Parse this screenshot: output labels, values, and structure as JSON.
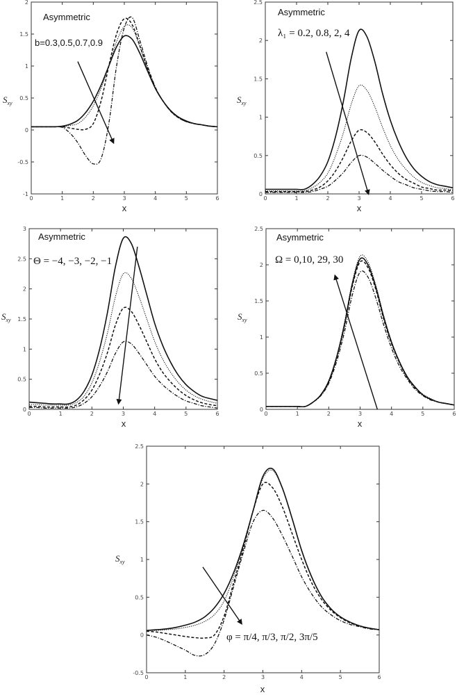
{
  "chart_data": [
    {
      "type": "line",
      "annotation": "Asymmetric",
      "param_label": "b=0.3,0.5,0.7,0.9",
      "xlabel": "x",
      "ylabel": {
        "base": "S",
        "sub": "xy"
      },
      "xlim": [
        0,
        6
      ],
      "ylim": [
        -1,
        2
      ],
      "xticks": [
        0,
        1,
        2,
        3,
        4,
        5,
        6
      ],
      "yticks": [
        -1,
        -0.5,
        0,
        0.5,
        1,
        1.5,
        2
      ],
      "arrow": {
        "from": [
          1.5,
          1.07
        ],
        "to": [
          2.65,
          -0.2
        ]
      },
      "x": [
        0,
        0.25,
        0.5,
        0.75,
        1,
        1.25,
        1.5,
        1.75,
        2,
        2.25,
        2.5,
        2.75,
        3,
        3.25,
        3.5,
        3.75,
        4,
        4.25,
        4.5,
        4.75,
        5,
        5.25,
        5.5,
        5.75,
        6
      ],
      "series": [
        {
          "style": "solid",
          "values": [
            0.05,
            0.05,
            0.05,
            0.05,
            0.06,
            0.09,
            0.15,
            0.27,
            0.45,
            0.7,
            1.0,
            1.3,
            1.47,
            1.42,
            1.2,
            0.92,
            0.65,
            0.45,
            0.3,
            0.2,
            0.14,
            0.1,
            0.08,
            0.06,
            0.05
          ]
        },
        {
          "style": "dotted",
          "values": [
            0.05,
            0.05,
            0.05,
            0.05,
            0.05,
            0.07,
            0.1,
            0.2,
            0.38,
            0.65,
            1.0,
            1.38,
            1.62,
            1.6,
            1.3,
            0.95,
            0.66,
            0.45,
            0.3,
            0.2,
            0.13,
            0.1,
            0.08,
            0.06,
            0.05
          ]
        },
        {
          "style": "dashed",
          "values": [
            0.05,
            0.05,
            0.05,
            0.05,
            0.05,
            0.03,
            0.01,
            0.01,
            0.1,
            0.45,
            1.0,
            1.5,
            1.74,
            1.65,
            1.32,
            0.96,
            0.66,
            0.45,
            0.29,
            0.19,
            0.13,
            0.1,
            0.08,
            0.06,
            0.05
          ]
        },
        {
          "style": "dashdot",
          "values": [
            0.05,
            0.05,
            0.05,
            0.05,
            0.04,
            -0.05,
            -0.2,
            -0.4,
            -0.53,
            -0.45,
            0.1,
            1.0,
            1.6,
            1.76,
            1.4,
            1.0,
            0.67,
            0.45,
            0.29,
            0.19,
            0.13,
            0.1,
            0.08,
            0.06,
            0.05
          ]
        }
      ]
    },
    {
      "type": "line",
      "annotation": "Asymmetric",
      "param_label": "λ₁ = 0.2, 0.8, 2, 4",
      "xlabel": "x",
      "ylabel": {
        "base": "S",
        "sub": "xy"
      },
      "xlim": [
        0,
        6
      ],
      "ylim": [
        0,
        2.5
      ],
      "xticks": [
        0,
        1,
        2,
        3,
        4,
        5,
        6
      ],
      "yticks": [
        0,
        0.5,
        1,
        1.5,
        2,
        2.5
      ],
      "arrow": {
        "from": [
          1.95,
          1.85
        ],
        "to": [
          3.3,
          0.0
        ]
      },
      "x": [
        0,
        0.25,
        0.5,
        0.75,
        1,
        1.25,
        1.5,
        1.75,
        2,
        2.25,
        2.5,
        2.75,
        3,
        3.25,
        3.5,
        3.75,
        4,
        4.25,
        4.5,
        4.75,
        5,
        5.25,
        5.5,
        5.75,
        6
      ],
      "series": [
        {
          "style": "solid",
          "values": [
            0.06,
            0.06,
            0.06,
            0.06,
            0.06,
            0.06,
            0.12,
            0.23,
            0.42,
            0.75,
            1.21,
            1.77,
            2.13,
            2.05,
            1.73,
            1.31,
            0.96,
            0.69,
            0.48,
            0.33,
            0.23,
            0.16,
            0.12,
            0.1,
            0.08
          ]
        },
        {
          "style": "dotted",
          "values": [
            0.04,
            0.04,
            0.04,
            0.04,
            0.04,
            0.04,
            0.08,
            0.15,
            0.27,
            0.5,
            0.8,
            1.17,
            1.41,
            1.35,
            1.14,
            0.87,
            0.63,
            0.45,
            0.32,
            0.22,
            0.15,
            0.11,
            0.08,
            0.07,
            0.05
          ]
        },
        {
          "style": "dashed",
          "values": [
            0.03,
            0.03,
            0.03,
            0.03,
            0.03,
            0.03,
            0.05,
            0.09,
            0.17,
            0.3,
            0.48,
            0.69,
            0.83,
            0.8,
            0.68,
            0.52,
            0.38,
            0.27,
            0.19,
            0.14,
            0.09,
            0.07,
            0.05,
            0.05,
            0.04
          ]
        },
        {
          "style": "dashdot",
          "values": [
            0.02,
            0.02,
            0.02,
            0.02,
            0.02,
            0.02,
            0.03,
            0.06,
            0.1,
            0.18,
            0.28,
            0.41,
            0.5,
            0.48,
            0.4,
            0.31,
            0.23,
            0.16,
            0.12,
            0.08,
            0.06,
            0.04,
            0.03,
            0.03,
            0.02
          ]
        }
      ]
    },
    {
      "type": "line",
      "annotation": "Asymmetric",
      "param_label": "Θ = −4, −3, −2, −1",
      "xlabel": "x",
      "ylabel": {
        "base": "S",
        "sub": "xy"
      },
      "xlim": [
        0,
        6
      ],
      "ylim": [
        0,
        3
      ],
      "xticks": [
        0,
        1,
        2,
        3,
        4,
        5,
        6
      ],
      "yticks": [
        0,
        0.5,
        1,
        1.5,
        2,
        2.5,
        3
      ],
      "arrow": {
        "from": [
          3.45,
          2.7
        ],
        "to": [
          2.85,
          0.1
        ]
      },
      "x": [
        0,
        0.25,
        0.5,
        0.75,
        1,
        1.25,
        1.5,
        1.75,
        2,
        2.25,
        2.5,
        2.75,
        3,
        3.25,
        3.5,
        3.75,
        4,
        4.25,
        4.5,
        4.75,
        5,
        5.25,
        5.5,
        5.75,
        6
      ],
      "series": [
        {
          "style": "solid",
          "values": [
            0.12,
            0.11,
            0.1,
            0.09,
            0.09,
            0.09,
            0.15,
            0.3,
            0.57,
            1.01,
            1.62,
            2.37,
            2.84,
            2.76,
            2.37,
            1.9,
            1.43,
            1.07,
            0.79,
            0.57,
            0.41,
            0.3,
            0.22,
            0.18,
            0.15
          ]
        },
        {
          "style": "dotted",
          "values": [
            0.08,
            0.08,
            0.07,
            0.07,
            0.07,
            0.07,
            0.11,
            0.22,
            0.44,
            0.8,
            1.28,
            1.87,
            2.25,
            2.18,
            1.87,
            1.5,
            1.13,
            0.84,
            0.62,
            0.45,
            0.32,
            0.23,
            0.17,
            0.13,
            0.1
          ]
        },
        {
          "style": "dashed",
          "values": [
            0.05,
            0.05,
            0.04,
            0.04,
            0.04,
            0.04,
            0.07,
            0.16,
            0.32,
            0.59,
            0.95,
            1.4,
            1.68,
            1.63,
            1.4,
            1.12,
            0.84,
            0.62,
            0.46,
            0.33,
            0.23,
            0.16,
            0.11,
            0.08,
            0.06
          ]
        },
        {
          "style": "dashdot",
          "values": [
            0.03,
            0.03,
            0.02,
            0.02,
            0.02,
            0.02,
            0.04,
            0.1,
            0.21,
            0.39,
            0.63,
            0.93,
            1.12,
            1.09,
            0.93,
            0.74,
            0.55,
            0.41,
            0.3,
            0.21,
            0.14,
            0.1,
            0.06,
            0.04,
            0.02
          ]
        }
      ]
    },
    {
      "type": "line",
      "annotation": "Asymmetric",
      "param_label": "Ω = 0,10, 29, 30",
      "xlabel": "x",
      "ylabel": {
        "base": "S",
        "sub": "xy"
      },
      "xlim": [
        0,
        6
      ],
      "ylim": [
        0,
        2.5
      ],
      "xticks": [
        0,
        1,
        2,
        3,
        4,
        5,
        6
      ],
      "yticks": [
        0,
        0.5,
        1,
        1.5,
        2,
        2.5
      ],
      "arrow": {
        "from": [
          3.55,
          0.0
        ],
        "to": [
          2.2,
          1.85
        ]
      },
      "x": [
        0,
        0.25,
        0.5,
        0.75,
        1,
        1.25,
        1.5,
        1.75,
        2,
        2.25,
        2.5,
        2.75,
        3,
        3.25,
        3.5,
        3.75,
        4,
        4.25,
        4.5,
        4.75,
        5,
        5.25,
        5.5,
        5.75,
        6
      ],
      "series": [
        {
          "style": "solid",
          "values": [
            0.04,
            0.04,
            0.04,
            0.04,
            0.04,
            0.04,
            0.1,
            0.2,
            0.39,
            0.72,
            1.17,
            1.73,
            2.08,
            2.0,
            1.69,
            1.28,
            0.93,
            0.66,
            0.45,
            0.31,
            0.2,
            0.14,
            0.1,
            0.08,
            0.06
          ]
        },
        {
          "style": "dotted",
          "values": [
            0.04,
            0.04,
            0.04,
            0.04,
            0.04,
            0.04,
            0.1,
            0.21,
            0.4,
            0.73,
            1.2,
            1.76,
            2.12,
            2.04,
            1.72,
            1.3,
            0.94,
            0.67,
            0.46,
            0.31,
            0.21,
            0.15,
            0.1,
            0.08,
            0.06
          ]
        },
        {
          "style": "dashed",
          "values": [
            0.04,
            0.04,
            0.04,
            0.04,
            0.04,
            0.04,
            0.1,
            0.2,
            0.38,
            0.71,
            1.15,
            1.7,
            2.04,
            1.96,
            1.66,
            1.25,
            0.91,
            0.65,
            0.44,
            0.3,
            0.2,
            0.14,
            0.1,
            0.08,
            0.06
          ]
        },
        {
          "style": "dashdot",
          "values": [
            0.04,
            0.04,
            0.04,
            0.04,
            0.04,
            0.04,
            0.1,
            0.19,
            0.36,
            0.66,
            1.07,
            1.58,
            1.9,
            1.83,
            1.54,
            1.17,
            0.85,
            0.6,
            0.42,
            0.28,
            0.19,
            0.13,
            0.1,
            0.08,
            0.06
          ]
        }
      ]
    },
    {
      "type": "line",
      "annotation": "",
      "param_label": "φ = π/4, π/3, π/2, 3π/5",
      "xlabel": "x",
      "ylabel": {
        "base": "S",
        "sub": "xy"
      },
      "xlim": [
        0,
        6
      ],
      "ylim": [
        -0.5,
        2.5
      ],
      "xticks": [
        0,
        1,
        2,
        3,
        4,
        5,
        6
      ],
      "yticks": [
        -0.5,
        0,
        0.5,
        1,
        1.5,
        2,
        2.5
      ],
      "arrow": {
        "from": [
          1.45,
          0.9
        ],
        "to": [
          2.45,
          0.15
        ]
      },
      "x": [
        0,
        0.25,
        0.5,
        0.75,
        1,
        1.25,
        1.5,
        1.75,
        2,
        2.25,
        2.5,
        2.75,
        3,
        3.25,
        3.5,
        3.75,
        4,
        4.25,
        4.5,
        4.75,
        5,
        5.25,
        5.5,
        5.75,
        6
      ],
      "series": [
        {
          "style": "solid",
          "values": [
            0.06,
            0.07,
            0.08,
            0.1,
            0.13,
            0.17,
            0.24,
            0.36,
            0.55,
            0.83,
            1.2,
            1.65,
            2.1,
            2.2,
            1.95,
            1.55,
            1.12,
            0.78,
            0.52,
            0.35,
            0.24,
            0.17,
            0.12,
            0.09,
            0.07
          ]
        },
        {
          "style": "dotted",
          "values": [
            0.06,
            0.06,
            0.07,
            0.08,
            0.1,
            0.13,
            0.18,
            0.27,
            0.45,
            0.78,
            1.18,
            1.64,
            2.07,
            2.18,
            1.94,
            1.54,
            1.11,
            0.77,
            0.52,
            0.35,
            0.24,
            0.17,
            0.12,
            0.09,
            0.07
          ]
        },
        {
          "style": "dashed",
          "values": [
            0.05,
            0.04,
            0.02,
            0.0,
            -0.02,
            -0.035,
            -0.04,
            0.0,
            0.25,
            0.7,
            1.15,
            1.65,
            2.0,
            1.95,
            1.7,
            1.35,
            1.0,
            0.7,
            0.48,
            0.33,
            0.23,
            0.16,
            0.12,
            0.09,
            0.07
          ]
        },
        {
          "style": "dashdot",
          "values": [
            0.0,
            -0.03,
            -0.08,
            -0.14,
            -0.2,
            -0.27,
            -0.26,
            -0.12,
            0.2,
            0.65,
            1.1,
            1.5,
            1.65,
            1.55,
            1.32,
            1.05,
            0.77,
            0.55,
            0.38,
            0.27,
            0.19,
            0.14,
            0.11,
            0.08,
            0.07
          ]
        }
      ]
    }
  ]
}
